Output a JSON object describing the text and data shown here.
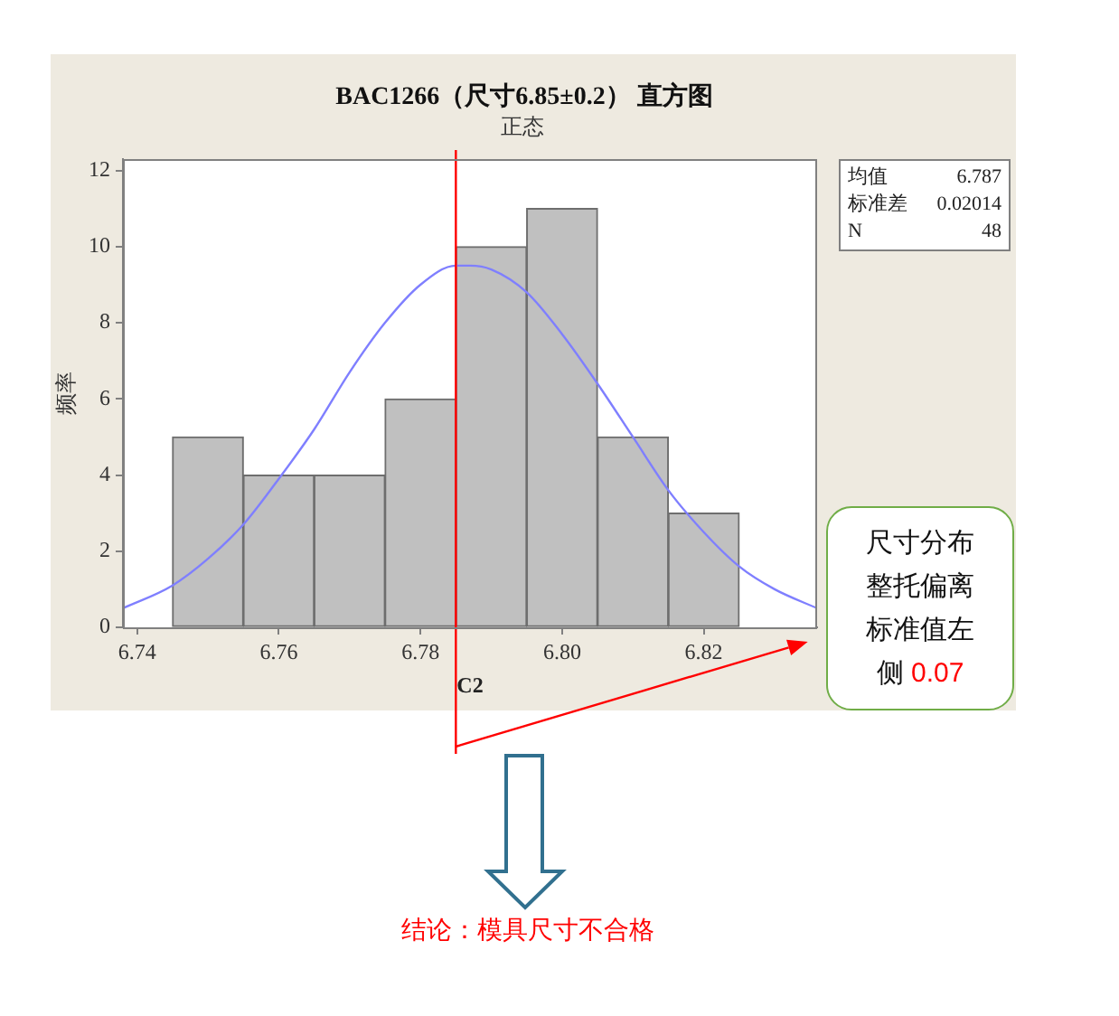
{
  "chart_data": {
    "type": "histogram",
    "title": "BAC1266（尺寸6.85±0.2） 直方图",
    "subtitle": "正态",
    "xlabel": "C2",
    "ylabel": "频率",
    "bins": [
      6.745,
      6.755,
      6.765,
      6.775,
      6.785,
      6.795,
      6.805,
      6.815,
      6.825
    ],
    "series": [
      {
        "type": "histogram",
        "color": "#c0c0c0",
        "values": [
          5,
          4,
          4,
          6,
          10,
          11,
          5,
          3
        ]
      },
      {
        "type": "line",
        "color": "#7f7fff",
        "x": [
          6.738,
          6.745,
          6.75,
          6.755,
          6.76,
          6.765,
          6.77,
          6.775,
          6.78,
          6.785,
          6.787,
          6.79,
          6.795,
          6.8,
          6.805,
          6.81,
          6.815,
          6.82,
          6.825,
          6.83,
          6.836
        ],
        "values": [
          0.5,
          1.1,
          1.8,
          2.7,
          3.9,
          5.2,
          6.7,
          8.0,
          9.0,
          9.5,
          9.5,
          9.4,
          8.8,
          7.7,
          6.4,
          5.0,
          3.6,
          2.5,
          1.6,
          1.0,
          0.5
        ]
      }
    ],
    "xlim": [
      6.738,
      6.836
    ],
    "xticks": [
      6.74,
      6.76,
      6.78,
      {
        "value": 6.8,
        "label": "6.80"
      },
      6.82
    ],
    "ylim": [
      0,
      12.3
    ],
    "yticks": [
      0,
      2,
      4,
      6,
      8,
      10,
      12
    ],
    "ref_lines": [
      {
        "axis": "x",
        "value": 6.785,
        "color": "#ff0000"
      }
    ],
    "annotations": [
      "均值 6.787",
      "标准差 0.02014",
      "N 48",
      "尺寸分布整托偏离标准值左侧 0.07",
      "结论：模具尺寸不合格"
    ]
  }
}
